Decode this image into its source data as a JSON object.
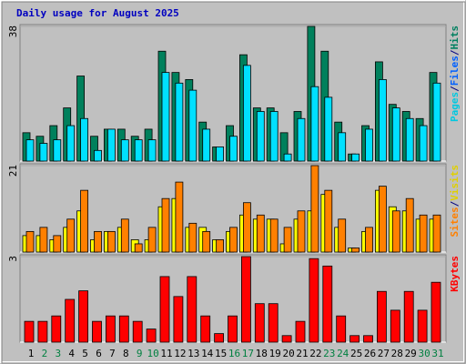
{
  "title": "Daily usage for August 2025",
  "chart_data": [
    {
      "type": "bar",
      "ylim": [
        0,
        38
      ],
      "yticks": [
        38
      ],
      "side_label": [
        {
          "text": "Pages",
          "color": "#00c8e0"
        },
        {
          "text": "/",
          "color": "#000080"
        },
        {
          "text": "Files",
          "color": "#0060ff"
        },
        {
          "text": "/",
          "color": "#000080"
        },
        {
          "text": "Hits",
          "color": "#008060"
        }
      ],
      "series": [
        {
          "name": "Hits",
          "color": "#00805c",
          "values": [
            8,
            7,
            10,
            15,
            24,
            7,
            9,
            9,
            7,
            9,
            31,
            25,
            23,
            11,
            4,
            10,
            30,
            15,
            15,
            8,
            14,
            38,
            31,
            11,
            2,
            10,
            28,
            16,
            14,
            12,
            25
          ]
        },
        {
          "name": "Files",
          "color": "#00e0ff",
          "values": [
            6,
            5,
            6,
            10,
            12,
            3,
            9,
            6,
            6,
            6,
            25,
            22,
            20,
            9,
            4,
            7,
            27,
            14,
            14,
            2,
            12,
            21,
            18,
            8,
            2,
            9,
            23,
            15,
            12,
            10,
            22
          ]
        }
      ]
    },
    {
      "type": "bar",
      "ylim": [
        0,
        21
      ],
      "yticks": [
        21
      ],
      "side_label": [
        {
          "text": "Sites",
          "color": "#ff8000"
        },
        {
          "text": "/",
          "color": "#000080"
        },
        {
          "text": "Visits",
          "color": "#e0d000"
        }
      ],
      "series": [
        {
          "name": "Visits",
          "color": "#ffff00",
          "values": [
            4,
            4,
            3,
            6,
            10,
            3,
            5,
            6,
            3,
            3,
            11,
            13,
            6,
            6,
            3,
            5,
            9,
            8,
            8,
            2,
            8,
            10,
            14,
            6,
            1,
            5,
            15,
            11,
            10,
            8,
            8
          ]
        },
        {
          "name": "Sites",
          "color": "#ff8000",
          "values": [
            5,
            6,
            4,
            8,
            15,
            5,
            5,
            8,
            2,
            6,
            13,
            17,
            7,
            5,
            3,
            6,
            12,
            9,
            8,
            6,
            10,
            21,
            15,
            8,
            1,
            6,
            16,
            10,
            13,
            9,
            9
          ]
        }
      ]
    },
    {
      "type": "bar",
      "ylim": [
        0,
        3
      ],
      "yticks": [
        3
      ],
      "side_label": [
        {
          "text": "KBytes",
          "color": "#ff0000"
        }
      ],
      "series": [
        {
          "name": "KBytes",
          "color": "#ff0000",
          "values": [
            0.73,
            0.73,
            0.92,
            1.5,
            1.8,
            0.73,
            0.92,
            0.92,
            0.73,
            0.46,
            2.3,
            1.6,
            2.3,
            0.92,
            0.3,
            0.92,
            3,
            1.35,
            1.35,
            0.23,
            0.73,
            2.93,
            2.67,
            0.92,
            0.23,
            0.23,
            1.78,
            1.12,
            1.78,
            1.12,
            2.1
          ]
        }
      ],
      "categories": [
        "1",
        "2",
        "3",
        "4",
        "5",
        "6",
        "7",
        "8",
        "9",
        "10",
        "11",
        "12",
        "13",
        "14",
        "15",
        "16",
        "17",
        "18",
        "19",
        "20",
        "21",
        "22",
        "23",
        "24",
        "25",
        "26",
        "27",
        "28",
        "29",
        "30",
        "31"
      ],
      "category_colors": [
        "#000000",
        "#008040",
        "#008040",
        "#000000",
        "#000000",
        "#000000",
        "#000000",
        "#000000",
        "#008040",
        "#008040",
        "#000000",
        "#000000",
        "#000000",
        "#000000",
        "#000000",
        "#008040",
        "#008040",
        "#000000",
        "#000000",
        "#000000",
        "#000000",
        "#000000",
        "#008040",
        "#008040",
        "#000000",
        "#000000",
        "#000000",
        "#000000",
        "#000000",
        "#008040",
        "#008040"
      ]
    }
  ]
}
